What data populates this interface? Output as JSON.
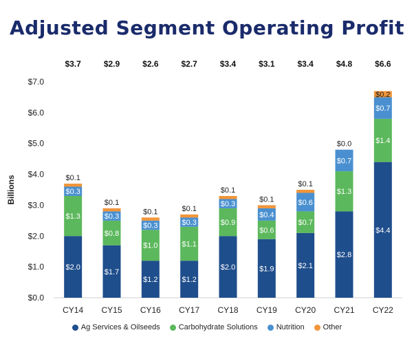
{
  "chart_data": {
    "type": "bar",
    "stacked": true,
    "title": "Adjusted Segment Operating Profit",
    "ylabel": "Billions",
    "xlabel": "",
    "ylim": [
      0,
      7
    ],
    "yticks": [
      "$0.0",
      "$1.0",
      "$2.0",
      "$3.0",
      "$4.0",
      "$5.0",
      "$6.0",
      "$7.0"
    ],
    "grid": false,
    "legend_position": "bottom",
    "categories": [
      "CY14",
      "CY15",
      "CY16",
      "CY17",
      "CY18",
      "CY19",
      "CY20",
      "CY21",
      "CY22"
    ],
    "totals": [
      "$3.7",
      "$2.9",
      "$2.6",
      "$2.7",
      "$3.4",
      "$3.1",
      "$3.4",
      "$4.8",
      "$6.6"
    ],
    "series": [
      {
        "name": "Ag Services & Oilseeds",
        "color": "#1f4e8c",
        "values": [
          2.0,
          1.7,
          1.2,
          1.2,
          2.0,
          1.9,
          2.1,
          2.8,
          4.4
        ],
        "labels": [
          "$2.0",
          "$1.7",
          "$1.2",
          "$1.2",
          "$2.0",
          "$1.9",
          "$2.1",
          "$2.8",
          "$4.4"
        ]
      },
      {
        "name": "Carbohydrate Solutions",
        "color": "#5cb85c",
        "values": [
          1.3,
          0.8,
          1.0,
          1.1,
          0.9,
          0.6,
          0.7,
          1.3,
          1.4
        ],
        "labels": [
          "$1.3",
          "$0.8",
          "$1.0",
          "$1.1",
          "$0.9",
          "$0.6",
          "$0.7",
          "$1.3",
          "$1.4"
        ]
      },
      {
        "name": "Nutrition",
        "color": "#4a90d0",
        "values": [
          0.3,
          0.3,
          0.3,
          0.3,
          0.3,
          0.4,
          0.6,
          0.7,
          0.7
        ],
        "labels": [
          "$0.3",
          "$0.3",
          "$0.3",
          "$0.3",
          "$0.3",
          "$0.4",
          "$0.6",
          "$0.7",
          "$0.7"
        ]
      },
      {
        "name": "Other",
        "color": "#f0953a",
        "values": [
          0.1,
          0.1,
          0.1,
          0.1,
          0.1,
          0.1,
          0.1,
          0.0,
          0.2
        ],
        "labels": [
          "$0.1",
          "$0.1",
          "$0.1",
          "$0.1",
          "$0.1",
          "$0.1",
          "$0.1",
          "$0.0",
          "$0.2"
        ]
      }
    ]
  }
}
